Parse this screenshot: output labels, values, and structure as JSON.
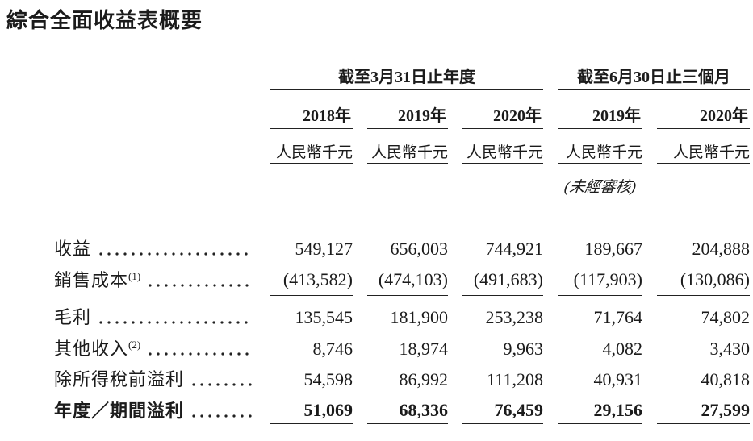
{
  "page": {
    "title": "綜合全面收益表概要",
    "background_color": "#ffffff",
    "text_color": "#1b1b1b",
    "rule_color": "#222222"
  },
  "table": {
    "groups": [
      {
        "label": "截至3月31日止年度",
        "columns": 3
      },
      {
        "label": "截至6月30日止三個月",
        "columns": 2
      }
    ],
    "columns": [
      {
        "year": "2018年"
      },
      {
        "year": "2019年"
      },
      {
        "year": "2020年"
      },
      {
        "year": "2019年"
      },
      {
        "year": "2020年"
      }
    ],
    "unit_label": "人民幣千元",
    "unaudited_note": "(未經審核)",
    "rows": [
      {
        "label": "收益",
        "sup": "",
        "values": [
          "549,127",
          "656,003",
          "744,921",
          "189,667",
          "204,888"
        ],
        "bold": false,
        "rule_below": false
      },
      {
        "label": "銷售成本",
        "sup": "(1)",
        "values": [
          "(413,582)",
          "(474,103)",
          "(491,683)",
          "(117,903)",
          "(130,086)"
        ],
        "bold": false,
        "rule_below": true
      },
      {
        "label": "毛利",
        "sup": "",
        "values": [
          "135,545",
          "181,900",
          "253,238",
          "71,764",
          "74,802"
        ],
        "bold": false,
        "rule_below": false
      },
      {
        "label": "其他收入",
        "sup": "(2)",
        "values": [
          "8,746",
          "18,974",
          "9,963",
          "4,082",
          "3,430"
        ],
        "bold": false,
        "rule_below": false
      },
      {
        "label": "除所得稅前溢利",
        "sup": "",
        "values": [
          "54,598",
          "86,992",
          "111,208",
          "40,931",
          "40,818"
        ],
        "bold": false,
        "rule_below": false
      },
      {
        "label": "年度／期間溢利",
        "sup": "",
        "values": [
          "51,069",
          "68,336",
          "76,459",
          "29,156",
          "27,599"
        ],
        "bold": true,
        "rule_below": true
      }
    ]
  }
}
